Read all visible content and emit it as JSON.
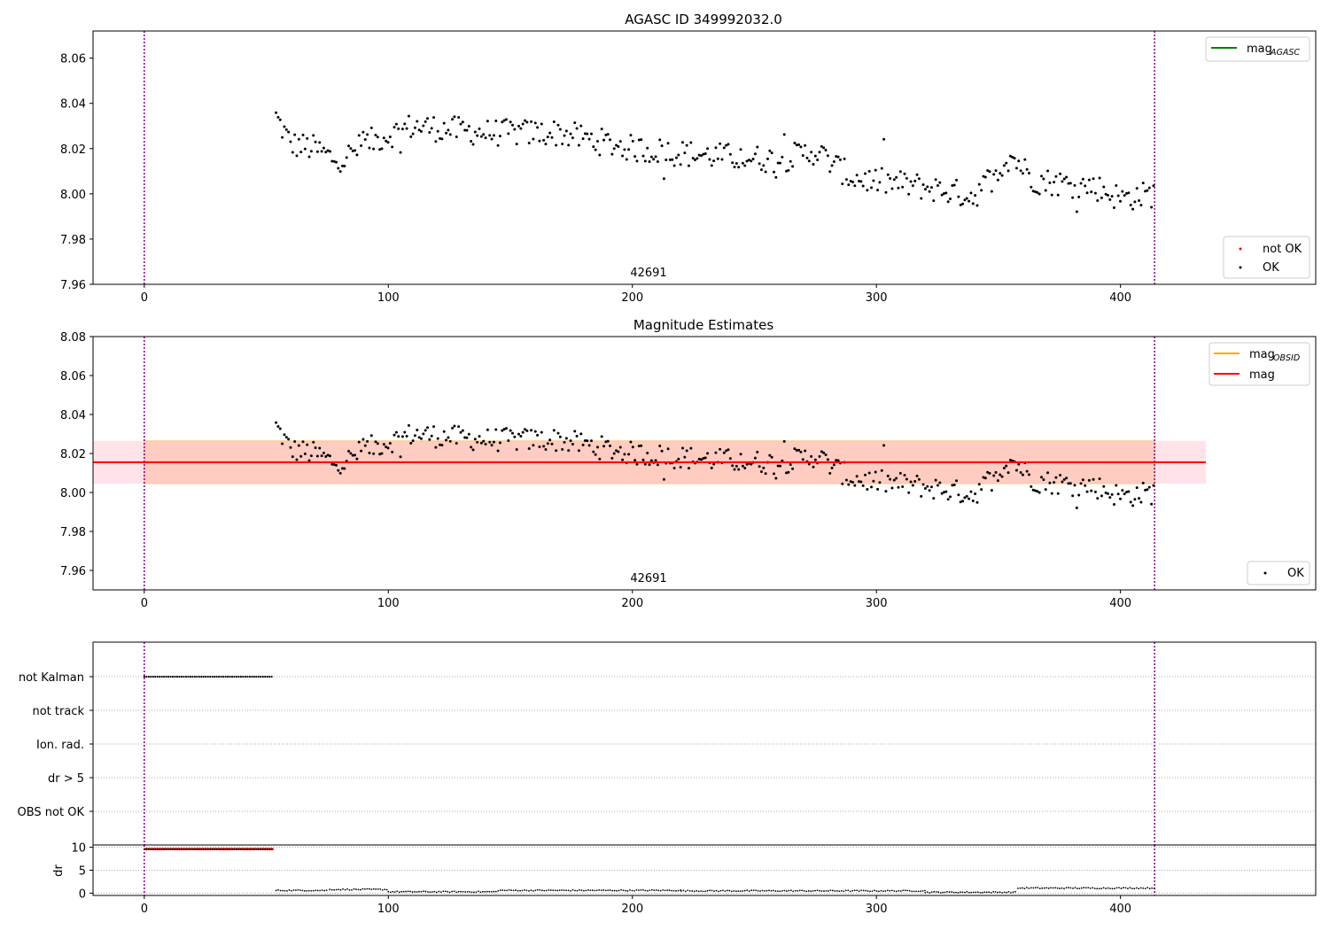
{
  "chart_data": [
    {
      "type": "scatter",
      "title": "AGASC ID 349992032.0",
      "xlim": [
        -21,
        480
      ],
      "ylim": [
        7.96,
        8.072
      ],
      "xticks": [
        "0",
        "100",
        "200",
        "300",
        "400"
      ],
      "yticks": [
        "7.96",
        "7.98",
        "8.00",
        "8.02",
        "8.04",
        "8.06"
      ],
      "vlines_x": [
        0,
        414
      ],
      "obsid_label": "42691",
      "legend_lines": [
        {
          "label": "mag",
          "sub": "AGASC",
          "color": "#008000"
        }
      ],
      "legend_points": [
        {
          "label": "not OK",
          "color": "#ff0000"
        },
        {
          "label": "OK",
          "color": "#000000"
        }
      ],
      "series": [
        {
          "name": "OK",
          "x_start": 54,
          "x_end": 414,
          "y_start": 8.03,
          "y_end": 8.0
        }
      ]
    },
    {
      "type": "scatter",
      "title": "Magnitude Estimates",
      "xlim": [
        -21,
        480
      ],
      "ylim": [
        7.95,
        8.08
      ],
      "xticks": [
        "0",
        "100",
        "200",
        "300",
        "400"
      ],
      "yticks": [
        "7.96",
        "7.98",
        "8.00",
        "8.02",
        "8.04",
        "8.06",
        "8.08"
      ],
      "vlines_x": [
        0,
        414
      ],
      "obsid_label": "42691",
      "mag_line": 8.0155,
      "band_inner": [
        8.0045,
        8.0265
      ],
      "band_outer": [
        8.0045,
        8.0265
      ],
      "band_x": [
        -21,
        435
      ],
      "legend_lines": [
        {
          "label": "mag",
          "sub": "OBSID",
          "color": "#ffa500"
        },
        {
          "label": "mag",
          "sub": "",
          "color": "#ff0000"
        }
      ],
      "legend_points": [
        {
          "label": "OK",
          "color": "#000000"
        }
      ],
      "series": [
        {
          "name": "OK",
          "x_start": 54,
          "x_end": 414,
          "y_start": 8.03,
          "y_end": 8.0
        }
      ]
    },
    {
      "type": "scatter",
      "xlim": [
        -21,
        480
      ],
      "categories": [
        "not Kalman",
        "not track",
        "Ion. rad.",
        "dr > 5",
        "OBS not OK"
      ],
      "flag_ranges": [
        {
          "category": "not Kalman",
          "x": [
            0,
            53
          ]
        }
      ],
      "vlines_x": [
        0,
        414
      ]
    },
    {
      "type": "scatter",
      "ylabel": "dr",
      "xlim": [
        -21,
        480
      ],
      "ylim": [
        -0.5,
        10.5
      ],
      "xticks": [
        "0",
        "100",
        "200",
        "300",
        "400"
      ],
      "yticks": [
        "0",
        "5",
        "10"
      ],
      "vlines_x": [
        0,
        414
      ],
      "red_segment": {
        "x": [
          0,
          53
        ],
        "y": 9.6
      },
      "series": [
        {
          "x": [
            54,
            75
          ],
          "y": 0.6
        },
        {
          "x": [
            76,
            100
          ],
          "y": 0.8
        },
        {
          "x": [
            100,
            145
          ],
          "y": 0.3
        },
        {
          "x": [
            145,
            220
          ],
          "y": 0.6
        },
        {
          "x": [
            220,
            320
          ],
          "y": 0.5
        },
        {
          "x": [
            320,
            357
          ],
          "y": 0.2
        },
        {
          "x": [
            358,
            414
          ],
          "y": 1.1
        }
      ]
    }
  ]
}
